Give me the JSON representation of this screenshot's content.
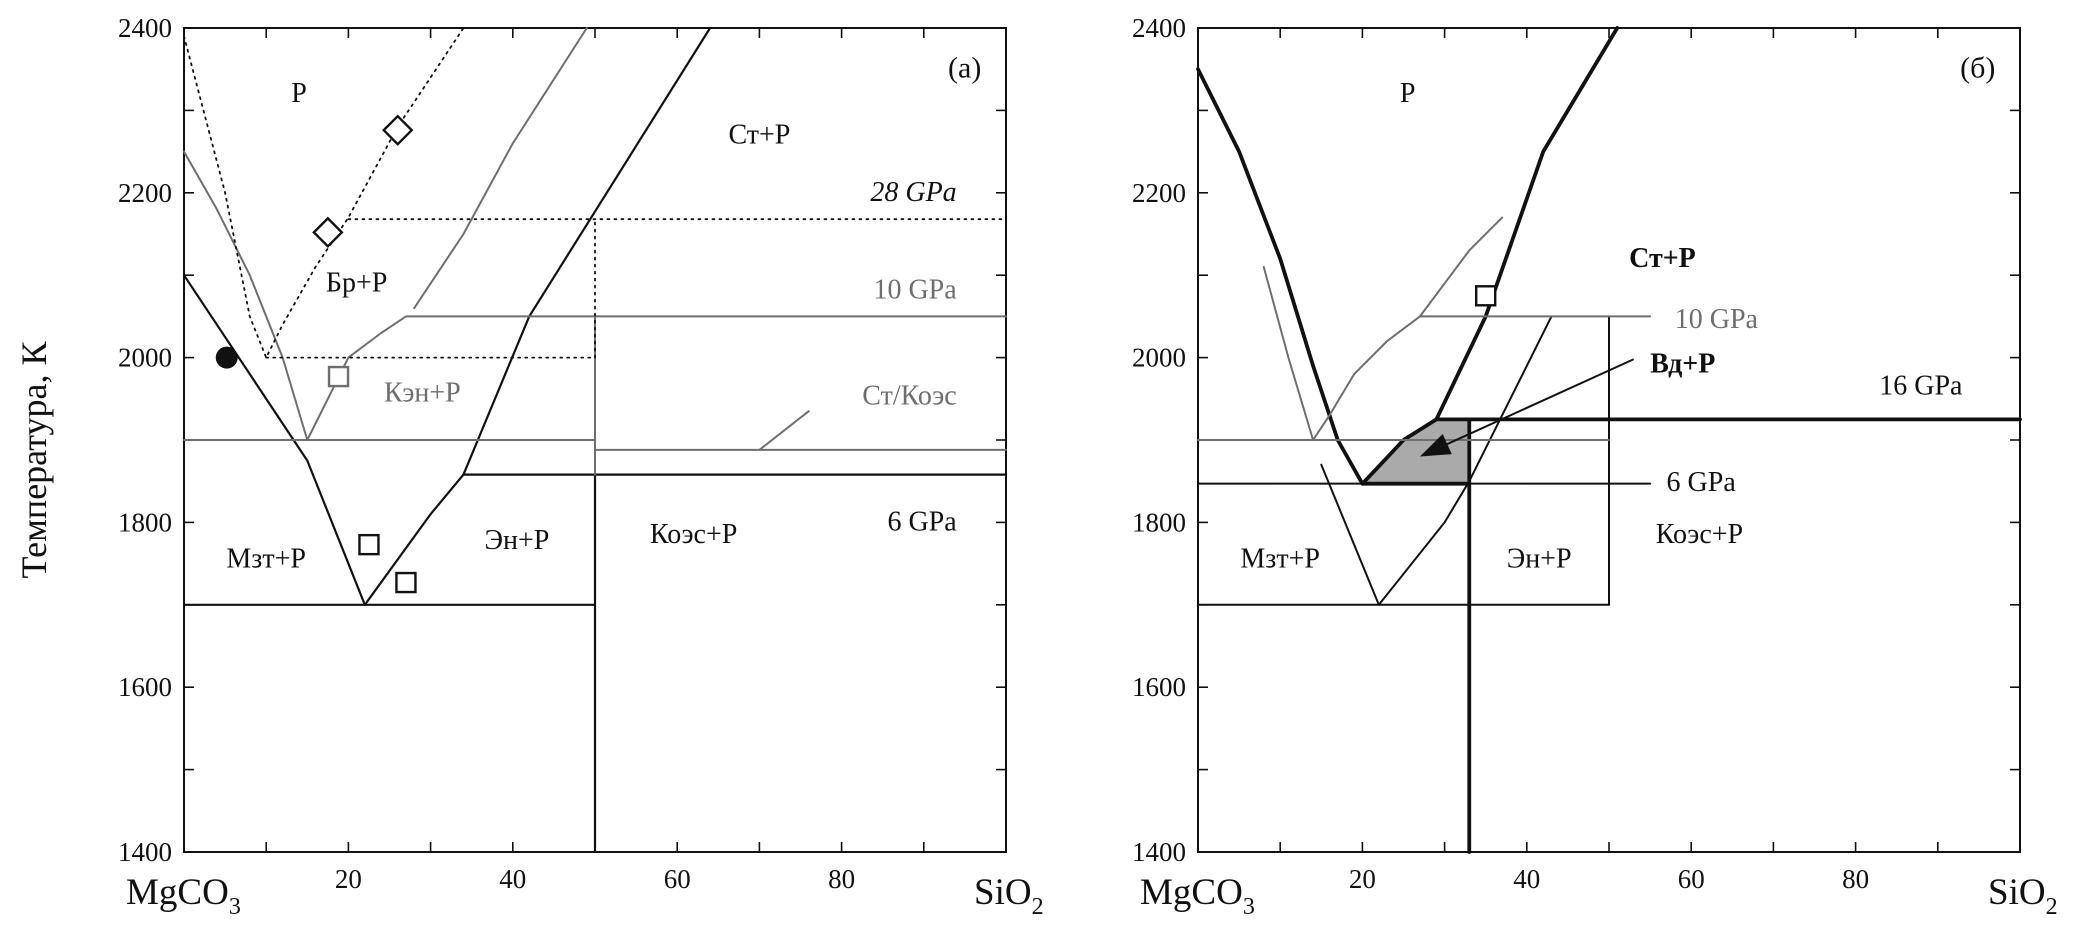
{
  "figure": {
    "ylabel": "Температура, К",
    "xlabel_left": "MgCO",
    "xlabel_left_sub": "3",
    "xlabel_right": "SiO",
    "xlabel_right_sub": "2"
  },
  "colors": {
    "black": "#111111",
    "gray": "#6e6e6e",
    "fill": "#aaaaaa"
  },
  "chart_data": [
    {
      "panel": "(а)",
      "type": "phase-diagram",
      "xlim": [
        0,
        100
      ],
      "ylim": [
        1400,
        2400
      ],
      "xticks": [
        20,
        40,
        60,
        80
      ],
      "yticks": [
        1400,
        1600,
        1800,
        2000,
        2200,
        2400
      ],
      "x_minor": 10,
      "y_minor": 100,
      "lines": [
        {
          "name": "6 GPa",
          "color": "black",
          "width": 2.2,
          "dash": false,
          "segments": [
            [
              [
                0,
                2100
              ],
              [
                15,
                1875
              ],
              [
                22,
                1700
              ],
              [
                30,
                1810
              ],
              [
                34,
                1858
              ]
            ],
            [
              [
                34,
                1858
              ],
              [
                100,
                1858
              ]
            ],
            [
              [
                0,
                1700
              ],
              [
                50,
                1700
              ]
            ],
            [
              [
                34,
                1858
              ],
              [
                42,
                2050
              ],
              [
                64,
                2400
              ]
            ],
            [
              [
                50,
                1400
              ],
              [
                50,
                1858
              ]
            ]
          ]
        },
        {
          "name": "10 GPa",
          "color": "gray",
          "width": 2,
          "dash": false,
          "segments": [
            [
              [
                0,
                2250
              ],
              [
                4,
                2180
              ],
              [
                8,
                2100
              ],
              [
                12,
                2000
              ],
              [
                15,
                1900
              ],
              [
                17,
                1940
              ],
              [
                20,
                2000
              ],
              [
                24,
                2030
              ],
              [
                27,
                2050
              ],
              [
                100,
                2050
              ]
            ],
            [
              [
                0,
                1900
              ],
              [
                50,
                1900
              ]
            ],
            [
              [
                50,
                1888
              ],
              [
                100,
                1888
              ]
            ],
            [
              [
                28,
                2060
              ],
              [
                34,
                2150
              ],
              [
                40,
                2260
              ],
              [
                49,
                2400
              ]
            ],
            [
              [
                70,
                1888
              ],
              [
                76,
                1935
              ]
            ],
            [
              [
                50,
                1858
              ],
              [
                50,
                2050
              ]
            ]
          ]
        },
        {
          "name": "28 GPa",
          "color": "black",
          "width": 1.8,
          "dash": true,
          "segments": [
            [
              [
                0,
                2390
              ],
              [
                5,
                2200
              ],
              [
                8,
                2050
              ],
              [
                10,
                2000
              ],
              [
                12,
                2040
              ],
              [
                16,
                2110
              ],
              [
                20,
                2170
              ],
              [
                26,
                2280
              ],
              [
                34,
                2400
              ]
            ],
            [
              [
                10,
                2000
              ],
              [
                50,
                2000
              ]
            ],
            [
              [
                20,
                2168
              ],
              [
                100,
                2168
              ]
            ],
            [
              [
                50,
                2000
              ],
              [
                50,
                2168
              ]
            ]
          ]
        }
      ],
      "markers": [
        {
          "shape": "circle",
          "fill": "black",
          "x": 5.2,
          "y": 2000
        },
        {
          "shape": "diamond",
          "fill": "none",
          "x": 26,
          "y": 2276
        },
        {
          "shape": "diamond",
          "fill": "none",
          "x": 17.5,
          "y": 2152
        },
        {
          "shape": "square",
          "color": "gray",
          "x": 18.8,
          "y": 1977
        },
        {
          "shape": "square",
          "color": "black",
          "x": 22.5,
          "y": 1773
        },
        {
          "shape": "square",
          "color": "black",
          "x": 27,
          "y": 1727
        }
      ],
      "labels": [
        {
          "text": "(а)",
          "x": 97,
          "y": 2340,
          "anchor": "end",
          "size": 30,
          "color": "black"
        },
        {
          "text": "Р",
          "x": 14,
          "y": 2310,
          "anchor": "middle",
          "size": 28,
          "color": "black"
        },
        {
          "text": "Ст+Р",
          "x": 70,
          "y": 2260,
          "anchor": "middle",
          "size": 28,
          "color": "black"
        },
        {
          "text": "28 GPa",
          "x": 94,
          "y": 2190,
          "anchor": "end",
          "size": 28,
          "color": "black",
          "italic": true
        },
        {
          "text": "Бр+Р",
          "x": 21,
          "y": 2080,
          "anchor": "middle",
          "size": 28,
          "color": "black"
        },
        {
          "text": "10 GPa",
          "x": 94,
          "y": 2072,
          "anchor": "end",
          "size": 28,
          "color": "gray"
        },
        {
          "text": "Кэн+Р",
          "x": 29,
          "y": 1947,
          "anchor": "middle",
          "size": 28,
          "color": "gray"
        },
        {
          "text": "Ст/Коэс",
          "x": 94,
          "y": 1943,
          "anchor": "end",
          "size": 28,
          "color": "gray"
        },
        {
          "text": "6 GPa",
          "x": 94,
          "y": 1790,
          "anchor": "end",
          "size": 28,
          "color": "black"
        },
        {
          "text": "Мзт+Р",
          "x": 10,
          "y": 1745,
          "anchor": "middle",
          "size": 28,
          "color": "black"
        },
        {
          "text": "Эн+Р",
          "x": 40.5,
          "y": 1768,
          "anchor": "middle",
          "size": 28,
          "color": "black"
        },
        {
          "text": "Коэс+Р",
          "x": 62,
          "y": 1775,
          "anchor": "middle",
          "size": 28,
          "color": "black"
        }
      ]
    },
    {
      "panel": "(б)",
      "type": "phase-diagram",
      "xlim": [
        0,
        100
      ],
      "ylim": [
        1400,
        2400
      ],
      "xticks": [
        20,
        40,
        60,
        80
      ],
      "yticks": [
        1400,
        1600,
        1800,
        2000,
        2200,
        2400
      ],
      "x_minor": 10,
      "y_minor": 100,
      "shaded_region": [
        [
          20,
          1847
        ],
        [
          22,
          1868
        ],
        [
          25,
          1900
        ],
        [
          29,
          1925
        ],
        [
          33,
          1925
        ],
        [
          33,
          1847
        ]
      ],
      "lines": [
        {
          "name": "16 GPa",
          "color": "black",
          "width": 3.8,
          "dash": false,
          "segments": [
            [
              [
                0,
                2350
              ],
              [
                5,
                2250
              ],
              [
                10,
                2120
              ],
              [
                14,
                1990
              ],
              [
                17,
                1900
              ],
              [
                20,
                1847
              ]
            ],
            [
              [
                20,
                1847
              ],
              [
                33,
                1847
              ]
            ],
            [
              [
                33,
                1400
              ],
              [
                33,
                1925
              ]
            ],
            [
              [
                33,
                1925
              ],
              [
                100,
                1925
              ]
            ],
            [
              [
                29,
                1925
              ],
              [
                35,
                2050
              ],
              [
                42,
                2250
              ],
              [
                51,
                2400
              ]
            ],
            [
              [
                20,
                1847
              ],
              [
                22,
                1868
              ],
              [
                25,
                1900
              ],
              [
                29,
                1925
              ],
              [
                33,
                1925
              ]
            ]
          ]
        },
        {
          "name": "6 GPa",
          "color": "black",
          "width": 2,
          "dash": false,
          "segments": [
            [
              [
                0,
                1847
              ],
              [
                55,
                1847
              ]
            ],
            [
              [
                0,
                1700
              ],
              [
                50,
                1700
              ]
            ],
            [
              [
                15,
                1870
              ],
              [
                22,
                1700
              ],
              [
                30,
                1800
              ],
              [
                33,
                1850
              ],
              [
                43,
                2050
              ]
            ],
            [
              [
                50,
                1700
              ],
              [
                50,
                2050
              ]
            ]
          ]
        },
        {
          "name": "10 GPa",
          "color": "gray",
          "width": 2,
          "dash": false,
          "segments": [
            [
              [
                8,
                2110
              ],
              [
                11,
                2000
              ],
              [
                14,
                1900
              ],
              [
                16,
                1930
              ],
              [
                19,
                1980
              ],
              [
                23,
                2020
              ],
              [
                27,
                2050
              ],
              [
                55,
                2050
              ]
            ],
            [
              [
                27,
                2050
              ],
              [
                33,
                2130
              ],
              [
                37,
                2170
              ]
            ],
            [
              [
                0,
                1900
              ],
              [
                50,
                1900
              ]
            ]
          ]
        }
      ],
      "markers": [
        {
          "shape": "square",
          "color": "black",
          "x": 35,
          "y": 2075
        }
      ],
      "arrow": {
        "from": [
          53,
          1998
        ],
        "to": [
          27,
          1880
        ]
      },
      "labels": [
        {
          "text": "(б)",
          "x": 97,
          "y": 2340,
          "anchor": "end",
          "size": 30,
          "color": "black"
        },
        {
          "text": "Р",
          "x": 25.5,
          "y": 2310,
          "anchor": "middle",
          "size": 28,
          "color": "black"
        },
        {
          "text": "Ст+Р",
          "x": 56.5,
          "y": 2110,
          "anchor": "middle",
          "size": 28,
          "color": "black",
          "bold": true
        },
        {
          "text": "10 GPa",
          "x": 58,
          "y": 2036,
          "anchor": "start",
          "size": 28,
          "color": "gray"
        },
        {
          "text": "Вд+Р",
          "x": 55,
          "y": 1982,
          "anchor": "start",
          "size": 28,
          "color": "black",
          "bold": true
        },
        {
          "text": "16 GPa",
          "x": 93,
          "y": 1955,
          "anchor": "end",
          "size": 28,
          "color": "black"
        },
        {
          "text": "6 GPa",
          "x": 57,
          "y": 1838,
          "anchor": "start",
          "size": 28,
          "color": "black"
        },
        {
          "text": "Мзт+Р",
          "x": 10,
          "y": 1745,
          "anchor": "middle",
          "size": 28,
          "color": "black"
        },
        {
          "text": "Эн+Р",
          "x": 41.5,
          "y": 1745,
          "anchor": "middle",
          "size": 28,
          "color": "black"
        },
        {
          "text": "Коэс+Р",
          "x": 61,
          "y": 1775,
          "anchor": "middle",
          "size": 28,
          "color": "black"
        }
      ]
    }
  ]
}
